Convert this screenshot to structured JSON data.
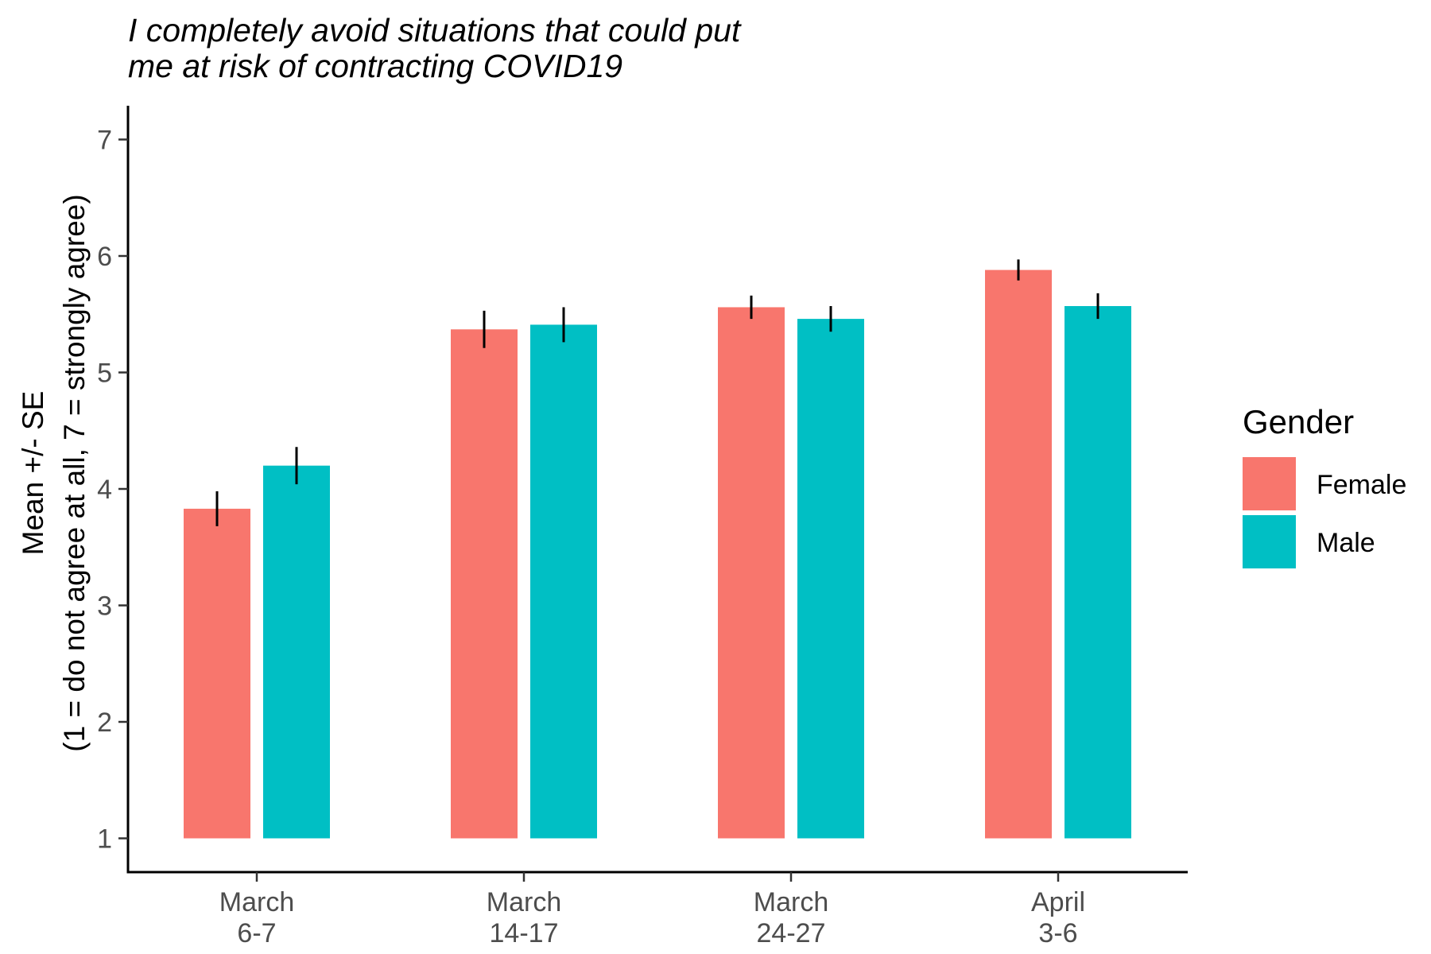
{
  "chart_data": {
    "type": "bar",
    "title_lines": [
      "I completely avoid situations that could put",
      "me at risk of contracting COVID19"
    ],
    "ylabel_lines": [
      "Mean +/- SE",
      "(1 = do not agree at all, 7 = strongly agree)"
    ],
    "xlabel": "",
    "categories": [
      [
        "March",
        "6-7"
      ],
      [
        "March",
        "14-17"
      ],
      [
        "March",
        "24-27"
      ],
      [
        "April",
        "3-6"
      ]
    ],
    "ylim": [
      0.71,
      7.29
    ],
    "yticks": [
      1,
      2,
      3,
      4,
      5,
      6,
      7
    ],
    "bar_baseline": 1,
    "legend": {
      "title": "Gender",
      "position": "right"
    },
    "grid": false,
    "series": [
      {
        "name": "Female",
        "color": "#F8766D",
        "values": [
          3.83,
          5.37,
          5.56,
          5.88
        ],
        "se": [
          0.15,
          0.16,
          0.1,
          0.09
        ]
      },
      {
        "name": "Male",
        "color": "#00BFC4",
        "values": [
          4.2,
          5.41,
          5.46,
          5.57
        ],
        "se": [
          0.16,
          0.15,
          0.11,
          0.11
        ]
      }
    ]
  }
}
